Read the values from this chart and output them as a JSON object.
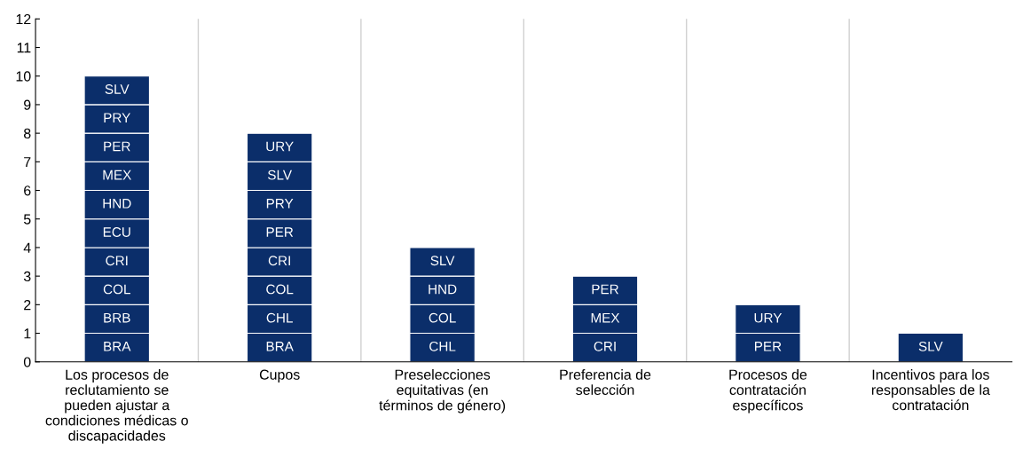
{
  "chart_data": {
    "type": "bar",
    "stacked": true,
    "categories": [
      "Los procesos de reclutamiento se pueden ajustar a condiciones médicas o discapacidades",
      "Cupos",
      "Preselecciones equitativas (en términos de género)",
      "Preferencia de selección",
      "Procesos de contratación específicos",
      "Incentivos para los responsables de la contratación"
    ],
    "series": [
      {
        "color": "#0b2e6a",
        "values": [
          1,
          1,
          1,
          1,
          1,
          1
        ],
        "value_labels": [
          "BRA",
          "BRA",
          "CHL",
          "CRI",
          "PER",
          "SLV"
        ]
      },
      {
        "color": "#0b2e6a",
        "values": [
          1,
          1,
          1,
          1,
          1,
          null
        ],
        "value_labels": [
          "BRB",
          "CHL",
          "COL",
          "MEX",
          "URY",
          null
        ]
      },
      {
        "color": "#0b2e6a",
        "values": [
          1,
          1,
          1,
          1,
          null,
          null
        ],
        "value_labels": [
          "COL",
          "COL",
          "HND",
          "PER",
          null,
          null
        ]
      },
      {
        "color": "#0b2e6a",
        "values": [
          1,
          1,
          1,
          null,
          null,
          null
        ],
        "value_labels": [
          "CRI",
          "CRI",
          "SLV",
          null,
          null,
          null
        ]
      },
      {
        "color": "#0b2e6a",
        "values": [
          1,
          1,
          null,
          null,
          null,
          null
        ],
        "value_labels": [
          "ECU",
          "PER",
          null,
          null,
          null,
          null
        ]
      },
      {
        "color": "#0b2e6a",
        "values": [
          1,
          1,
          null,
          null,
          null,
          null
        ],
        "value_labels": [
          "HND",
          "PRY",
          null,
          null,
          null,
          null
        ]
      },
      {
        "color": "#0b2e6a",
        "values": [
          1,
          1,
          null,
          null,
          null,
          null
        ],
        "value_labels": [
          "MEX",
          "SLV",
          null,
          null,
          null,
          null
        ]
      },
      {
        "color": "#0b2e6a",
        "values": [
          1,
          1,
          null,
          null,
          null,
          null
        ],
        "value_labels": [
          "PER",
          "URY",
          null,
          null,
          null,
          null
        ]
      },
      {
        "color": "#0b2e6a",
        "values": [
          1,
          null,
          null,
          null,
          null,
          null
        ],
        "value_labels": [
          "PRY",
          null,
          null,
          null,
          null,
          null
        ]
      },
      {
        "color": "#0b2e6a",
        "values": [
          1,
          null,
          null,
          null,
          null,
          null
        ],
        "value_labels": [
          "SLV",
          null,
          null,
          null,
          null,
          null
        ]
      }
    ],
    "ylim": [
      0,
      12
    ],
    "yticks": [
      0,
      1,
      2,
      3,
      4,
      5,
      6,
      7,
      8,
      9,
      10,
      11,
      12
    ],
    "grid": "x"
  }
}
